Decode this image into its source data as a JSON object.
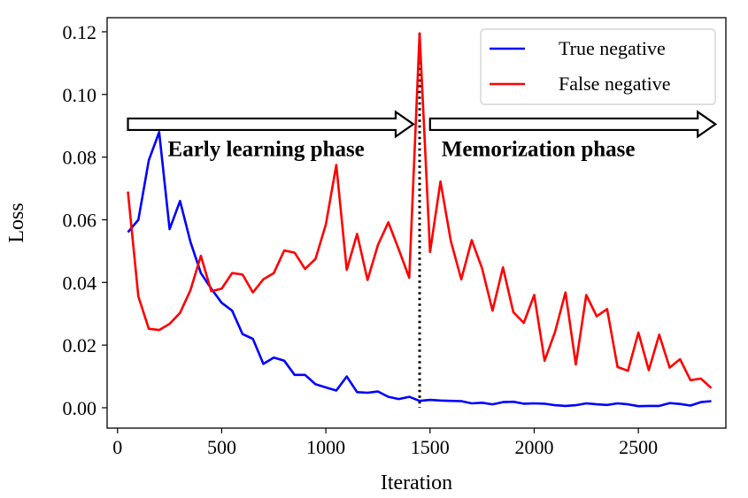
{
  "chart_data": {
    "type": "line",
    "xlabel": "Iteration",
    "ylabel": "Loss",
    "xlim": [
      -50,
      2920
    ],
    "ylim": [
      -0.0065,
      0.1245
    ],
    "x_ticks": [
      0,
      500,
      1000,
      1500,
      2000,
      2500
    ],
    "x_tick_labels": [
      "0",
      "500",
      "1000",
      "1500",
      "2000",
      "2500"
    ],
    "y_ticks": [
      0.0,
      0.02,
      0.04,
      0.06,
      0.08,
      0.1,
      0.12
    ],
    "y_tick_labels": [
      "0.00",
      "0.02",
      "0.04",
      "0.06",
      "0.08",
      "0.10",
      "0.12"
    ],
    "grid": false,
    "legend_position": "top-right",
    "x": [
      50,
      100,
      150,
      200,
      250,
      300,
      350,
      400,
      450,
      500,
      550,
      600,
      650,
      700,
      750,
      800,
      850,
      900,
      950,
      1000,
      1050,
      1100,
      1150,
      1200,
      1250,
      1300,
      1350,
      1400,
      1450,
      1500,
      1550,
      1600,
      1650,
      1700,
      1750,
      1800,
      1850,
      1900,
      1950,
      2000,
      2050,
      2100,
      2150,
      2200,
      2250,
      2300,
      2350,
      2400,
      2450,
      2500,
      2550,
      2600,
      2650,
      2700,
      2750,
      2800,
      2850
    ],
    "series": [
      {
        "name": "True negative",
        "color": "#0000ff",
        "values": [
          0.056,
          0.06,
          0.079,
          0.088,
          0.057,
          0.066,
          0.053,
          0.043,
          0.038,
          0.0335,
          0.031,
          0.0235,
          0.022,
          0.014,
          0.016,
          0.015,
          0.0105,
          0.0105,
          0.0075,
          0.0065,
          0.0055,
          0.01,
          0.005,
          0.0048,
          0.0052,
          0.0035,
          0.0028,
          0.0035,
          0.0022,
          0.0025,
          0.0023,
          0.0022,
          0.0021,
          0.0014,
          0.0016,
          0.0011,
          0.0018,
          0.0019,
          0.0013,
          0.0014,
          0.0013,
          0.0008,
          0.0006,
          0.0008,
          0.0014,
          0.0011,
          0.0009,
          0.0014,
          0.0011,
          0.0005,
          0.0006,
          0.0006,
          0.0015,
          0.0012,
          0.0007,
          0.0018,
          0.0021
        ]
      },
      {
        "name": "False negative",
        "color": "#ff0000",
        "values": [
          0.069,
          0.0355,
          0.0252,
          0.0248,
          0.0268,
          0.0303,
          0.0375,
          0.0485,
          0.0372,
          0.038,
          0.043,
          0.0425,
          0.0368,
          0.041,
          0.043,
          0.0502,
          0.0495,
          0.0443,
          0.0475,
          0.0585,
          0.0775,
          0.044,
          0.0555,
          0.0408,
          0.052,
          0.0592,
          0.0505,
          0.0415,
          0.1195,
          0.0497,
          0.0722,
          0.0532,
          0.041,
          0.0535,
          0.0445,
          0.031,
          0.0448,
          0.0305,
          0.0271,
          0.036,
          0.015,
          0.0242,
          0.0368,
          0.0138,
          0.036,
          0.0292,
          0.0315,
          0.013,
          0.0118,
          0.024,
          0.012,
          0.0233,
          0.0128,
          0.0155,
          0.0088,
          0.0093,
          0.0063
        ]
      }
    ],
    "vertical_line": {
      "x": 1450,
      "style": "dotted",
      "color": "#000000"
    },
    "annotations": [
      {
        "text": "Early learning phase",
        "arrow_from_x": 50,
        "arrow_to_x": 1420,
        "y": 0.0905
      },
      {
        "text": "Memorization phase",
        "arrow_from_x": 1500,
        "arrow_to_x": 2870,
        "y": 0.0905
      }
    ]
  }
}
